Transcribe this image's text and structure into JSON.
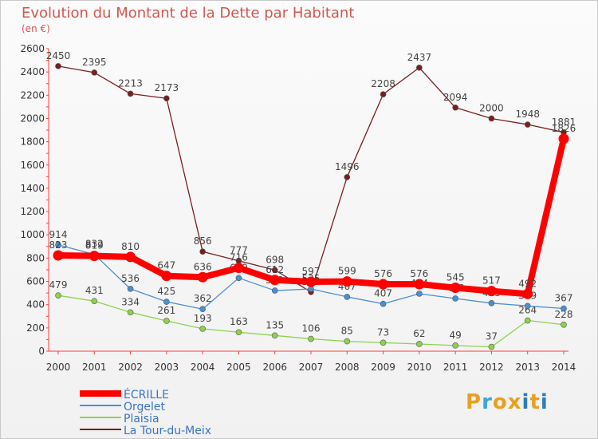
{
  "title": "Evolution du Montant de la Dette par Habitant",
  "subtitle": "(en €)",
  "logo": {
    "text": "Proxiti",
    "colors": [
      "#e8a020",
      "#3da5d9",
      "#e8a020",
      "#e8a020",
      "#2e7dbf",
      "#e8a020",
      "#2e7dbf"
    ]
  },
  "chart_data": {
    "type": "line",
    "x": [
      2000,
      2001,
      2002,
      2003,
      2004,
      2005,
      2006,
      2007,
      2008,
      2009,
      2010,
      2011,
      2012,
      2013,
      2014
    ],
    "ylim": [
      0,
      2600
    ],
    "yticks": [
      0,
      200,
      400,
      600,
      800,
      1000,
      1200,
      1400,
      1600,
      1800,
      2000,
      2200,
      2400,
      2600
    ],
    "grid": false,
    "legend": "bottom-left",
    "series": [
      {
        "name": "La Tour-du-Meix",
        "color": "#7b1e1e",
        "values": [
          2450,
          2395,
          2213,
          2173,
          856,
          777,
          698,
          509,
          1496,
          2208,
          2437,
          2094,
          2000,
          1948,
          1881
        ]
      },
      {
        "name": "Plaisia",
        "color": "#8fd14f",
        "values": [
          479,
          431,
          334,
          261,
          193,
          163,
          135,
          106,
          85,
          73,
          62,
          49,
          37,
          264,
          228
        ]
      },
      {
        "name": "Orgelet",
        "color": "#4b8ed6",
        "values": [
          914,
          832,
          536,
          425,
          362,
          629,
          521,
          535,
          467,
          407,
          494,
          453,
          413,
          389,
          367
        ]
      },
      {
        "name": "ÉCRILLE",
        "color": "#ff0000",
        "values": [
          823,
          819,
          810,
          647,
          636,
          716,
          612,
          597,
          599,
          576,
          576,
          545,
          517,
          492,
          1826
        ]
      }
    ]
  }
}
